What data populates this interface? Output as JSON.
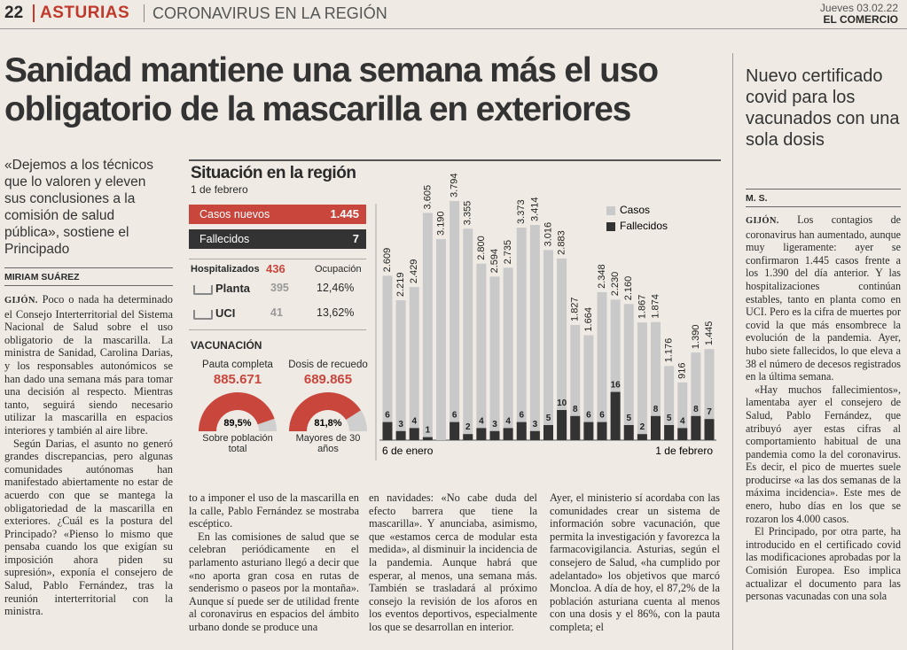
{
  "header": {
    "page": "22",
    "section": "ASTURIAS",
    "topic": "CORONAVIRUS EN LA REGIÓN",
    "date": "Jueves 03.02.22",
    "paper": "EL COMERCIO"
  },
  "article": {
    "headline": "Sanidad mantiene una semana más el uso obligatorio de la mascarilla en exteriores",
    "lead": "«Dejemos a los técnicos que lo valoren y eleven sus conclusiones a la comisión de salud pública», sostiene el Principado",
    "byline": "MIRIAM SUÁREZ",
    "dateline": "GIJÓN.",
    "columns": [
      [
        "Poco o nada ha determinado el Consejo Interterritorial del Sistema Nacional de Salud sobre el uso obligatorio de la mascarilla. La ministra de Sanidad, Carolina Darias, y los responsables autonómicos se han dado una semana más para tomar una decisión al respecto. Mientras tanto, seguirá siendo necesario utilizar la mascarilla en espacios interiores y también al aire libre.",
        "Según Darias, el asunto no generó grandes discrepancias, pero algunas comunidades autónomas han manifestado abiertamente no estar de acuerdo con que se mantega la obligatoriedad de la mascarilla en exteriores. ¿Cuál es la postura del Principado? «Pienso lo mismo que pensaba cuando los que exigían su imposición ahora piden su supresión», exponía el consejero de Salud, Pablo Fernández, tras la reunión interterritorial con la ministra."
      ],
      [
        "to a imponer el uso de la mascarilla en la calle, Pablo Fernández se mostraba escéptico.",
        "En las comisiones de salud que se celebran periódicamente en el parlamento asturiano llegó a decir que «no aporta gran cosa en rutas de senderismo o paseos por la montaña». Aunque sí puede ser de utilidad frente al coronavirus en espacios del ámbito urbano donde se produce una"
      ],
      [
        "en navidades: «No cabe duda del efecto barrera que tiene la mascarilla». Y anunciaba, asimismo, que «estamos cerca de modular esta medida», al disminuir la incidencia de la pandemia. Aunque habrá que esperar, al menos, una semana más. También se trasladará al próximo consejo la revisión de los aforos en los eventos deportivos, especialmente los que se desarrollan en interior."
      ],
      [
        "Ayer, el ministerio sí acordaba con las comunidades crear un sistema de información sobre vacunación, que permita la investigación y favorezca la farmacovigilancia. Asturias, según el consejero de Salud, «ha cumplido por adelantado» los objetivos que marcó Moncloa. A día de hoy, el 87,2% de la población asturiana cuenta al menos con una dosis y el 86%, con la pauta completa; el"
      ]
    ]
  },
  "sidebar": {
    "title": "Nuevo certificado covid para los vacunados con una sola dosis",
    "byline": "M. S.",
    "dateline": "GIJÓN.",
    "paragraphs": [
      "Los contagios de coronavirus han aumentado, aunque muy ligeramente: ayer se confirmaron 1.445 casos frente a los 1.390 del día anterior. Y las hospitalizaciones continúan estables, tanto en planta como en UCI. Pero es la cifra de muertes por covid la que más ensombrece la evolución de la pandemia. Ayer, hubo siete fallecidos, lo que eleva a 38 el número de decesos registrados en la última semana.",
      "«Hay muchos fallecimientos», lamentaba ayer el consejero de Salud, Pablo Fernández, que atribuyó ayer estas cifras al comportamiento habitual de una pandemia como la del coronavirus. Es decir, el pico de muertes suele producirse «a las dos semanas de la máxima incidencia». Este mes de enero, hubo días en los que se rozaron los 4.000 casos.",
      "El Principado, por otra parte, ha introducido en el certificado covid las modificaciones aprobadas por la Comisión Europea. Eso implica actualizar el documento para las personas vacunadas con una sola"
    ]
  },
  "infographic": {
    "title": "Situación en la región",
    "date": "1 de febrero",
    "cases": {
      "label": "Casos nuevos",
      "value": "1.445"
    },
    "deaths": {
      "label": "Fallecidos",
      "value": "7"
    },
    "hospital": {
      "label": "Hospitalizados",
      "value": "436",
      "occupancy": "Ocupación",
      "rows": [
        {
          "label": "Planta",
          "value": "395",
          "occupancy": "12,46%"
        },
        {
          "label": "UCI",
          "value": "41",
          "occupancy": "13,62%"
        }
      ]
    },
    "vaccination": {
      "title": "VACUNACIÓN",
      "items": [
        {
          "label": "Pauta completa",
          "value": "885.671",
          "percent": 89.5,
          "percent_label": "89,5%",
          "caption": "Sobre población total"
        },
        {
          "label": "Dosis de recuedo",
          "value": "689.865",
          "percent": 81.8,
          "percent_label": "81,8%",
          "caption": "Mayores de 30 años"
        }
      ]
    }
  },
  "chart_data": {
    "type": "bar",
    "categories": [
      "6 de enero",
      null,
      null,
      null,
      null,
      null,
      null,
      null,
      null,
      null,
      null,
      null,
      null,
      null,
      null,
      null,
      null,
      null,
      null,
      null,
      null,
      null,
      null,
      null,
      "1 de febrero"
    ],
    "series": [
      {
        "name": "Casos",
        "color": "#c9c9c9",
        "values": [
          2609,
          2219,
          2429,
          3605,
          3190,
          3794,
          3355,
          2800,
          2594,
          2735,
          3373,
          3414,
          3016,
          2883,
          1827,
          1664,
          2348,
          2230,
          2160,
          1867,
          1874,
          1176,
          916,
          1390,
          1445
        ],
        "value_labels": [
          "2.609",
          "2.219",
          "2.429",
          "3.605",
          "3.190",
          "3.794",
          "3.355",
          "2.800",
          "2.594",
          "2.735",
          "3.373",
          "3.414",
          "3.016",
          "2.883",
          "1.827",
          "1.664",
          "2.348",
          "2.230",
          "2.160",
          "1.867",
          "1.874",
          "1.176",
          "916",
          "1.390",
          "1.445"
        ]
      },
      {
        "name": "Fallecidos",
        "color": "#333333",
        "values": [
          6,
          3,
          4,
          1,
          null,
          6,
          2,
          4,
          3,
          4,
          6,
          3,
          5,
          10,
          8,
          6,
          6,
          16,
          5,
          2,
          8,
          5,
          4,
          8,
          7
        ]
      }
    ]
  }
}
